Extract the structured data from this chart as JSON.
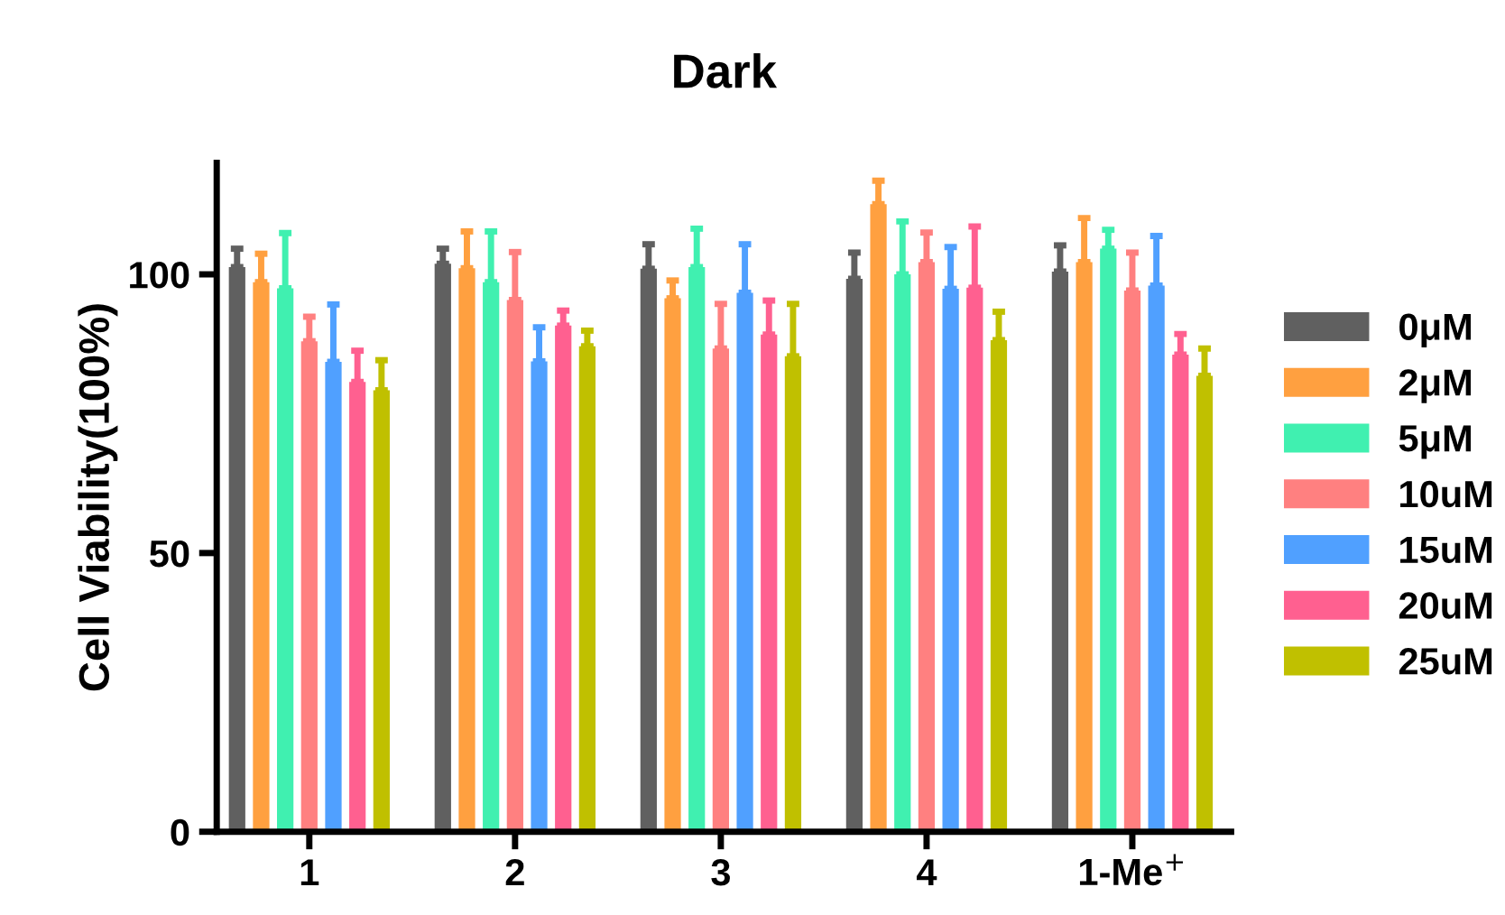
{
  "chart_data": {
    "type": "bar",
    "title": "Dark",
    "ylabel": "Cell Viability(100%)",
    "categories": [
      "1",
      "2",
      "3",
      "4",
      "1-Me$^{+}$"
    ],
    "ylim": [
      0,
      120
    ],
    "yticks": [
      0,
      50,
      100
    ],
    "grid": false,
    "legend": "right",
    "series": [
      {
        "name": "0μM",
        "color": "#606060",
        "values": [
          101.3,
          101.9,
          101,
          99.2,
          100.5
        ],
        "errors": [
          [
            101.3,
            104.6
          ],
          [
            101.9,
            104.6
          ],
          [
            101,
            105.4
          ],
          [
            99.2,
            103.9
          ],
          [
            100.5,
            105.2
          ]
        ]
      },
      {
        "name": "2μM",
        "color": "#ffa040",
        "values": [
          98.6,
          101.1,
          95.7,
          112.6,
          102.2
        ],
        "errors": [
          [
            98.6,
            103.7
          ],
          [
            101.1,
            107.7
          ],
          [
            95.7,
            98.9
          ],
          [
            112.6,
            116.8
          ],
          [
            102.2,
            110.1
          ]
        ]
      },
      {
        "name": "5μM",
        "color": "#40f0b0",
        "values": [
          97.5,
          98.6,
          101.3,
          100,
          104.6
        ],
        "errors": [
          [
            97.5,
            107.4
          ],
          [
            98.6,
            107.7
          ],
          [
            101.3,
            108.2
          ],
          [
            100,
            109.5
          ],
          [
            104.6,
            108
          ]
        ]
      },
      {
        "name": "10uM",
        "color": "#ff8080",
        "values": [
          88,
          95.4,
          86.7,
          102.2,
          97.1
        ],
        "errors": [
          [
            88,
            92.4
          ],
          [
            95.4,
            104
          ],
          [
            86.7,
            94.7
          ],
          [
            102.2,
            107.5
          ],
          [
            97.1,
            103.9
          ]
        ]
      },
      {
        "name": "15uM",
        "color": "#50a0ff",
        "values": [
          84.3,
          84.4,
          96.7,
          97.4,
          98
        ],
        "errors": [
          [
            84.3,
            94.6
          ],
          [
            84.4,
            90.5
          ],
          [
            96.7,
            105.4
          ],
          [
            97.4,
            104.9
          ],
          [
            98,
            106.9
          ]
        ]
      },
      {
        "name": "20uM",
        "color": "#ff6090",
        "values": [
          80.7,
          90.8,
          89.2,
          97.6,
          85.6
        ],
        "errors": [
          [
            80.7,
            86.3
          ],
          [
            90.8,
            93.5
          ],
          [
            89.2,
            95.3
          ],
          [
            97.6,
            108.6
          ],
          [
            85.6,
            89.3
          ]
        ]
      },
      {
        "name": "25uM",
        "color": "#c0c000",
        "values": [
          79.2,
          87.1,
          85.3,
          88.2,
          81.8
        ],
        "errors": [
          [
            79.2,
            84.6
          ],
          [
            87.1,
            89.9
          ],
          [
            85.3,
            94.7
          ],
          [
            88.2,
            93.3
          ],
          [
            81.8,
            86.7
          ]
        ]
      }
    ]
  }
}
